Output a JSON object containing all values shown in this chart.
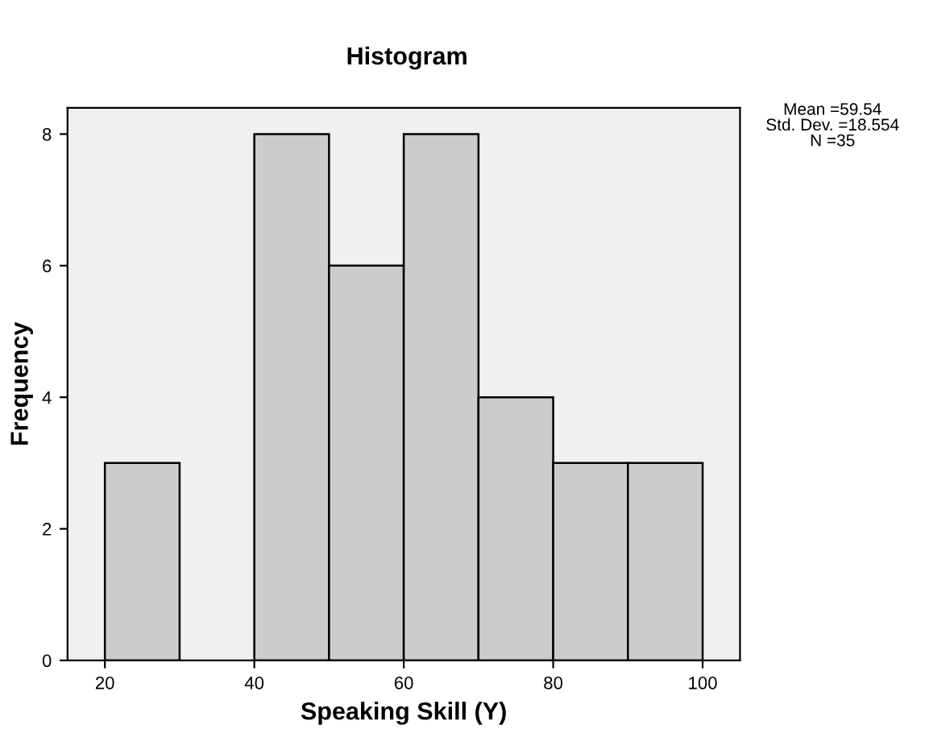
{
  "chart_data": {
    "type": "histogram",
    "title": "Histogram",
    "xlabel": "Speaking Skill (Y)",
    "ylabel": "Frequency",
    "bins": [
      20,
      30,
      40,
      50,
      60,
      70,
      80,
      90,
      100
    ],
    "values": [
      3,
      0,
      8,
      6,
      8,
      4,
      3,
      3
    ],
    "color": "#cccccc",
    "xlim": [
      15,
      105
    ],
    "xticks": [
      20,
      40,
      60,
      80,
      100
    ],
    "ylim": [
      0,
      8.4
    ],
    "yticks": [
      0,
      2,
      4,
      6,
      8
    ],
    "grid": false,
    "annotations": [
      "Mean =59.54",
      "Std. Dev. =18.554",
      "N =35"
    ]
  }
}
